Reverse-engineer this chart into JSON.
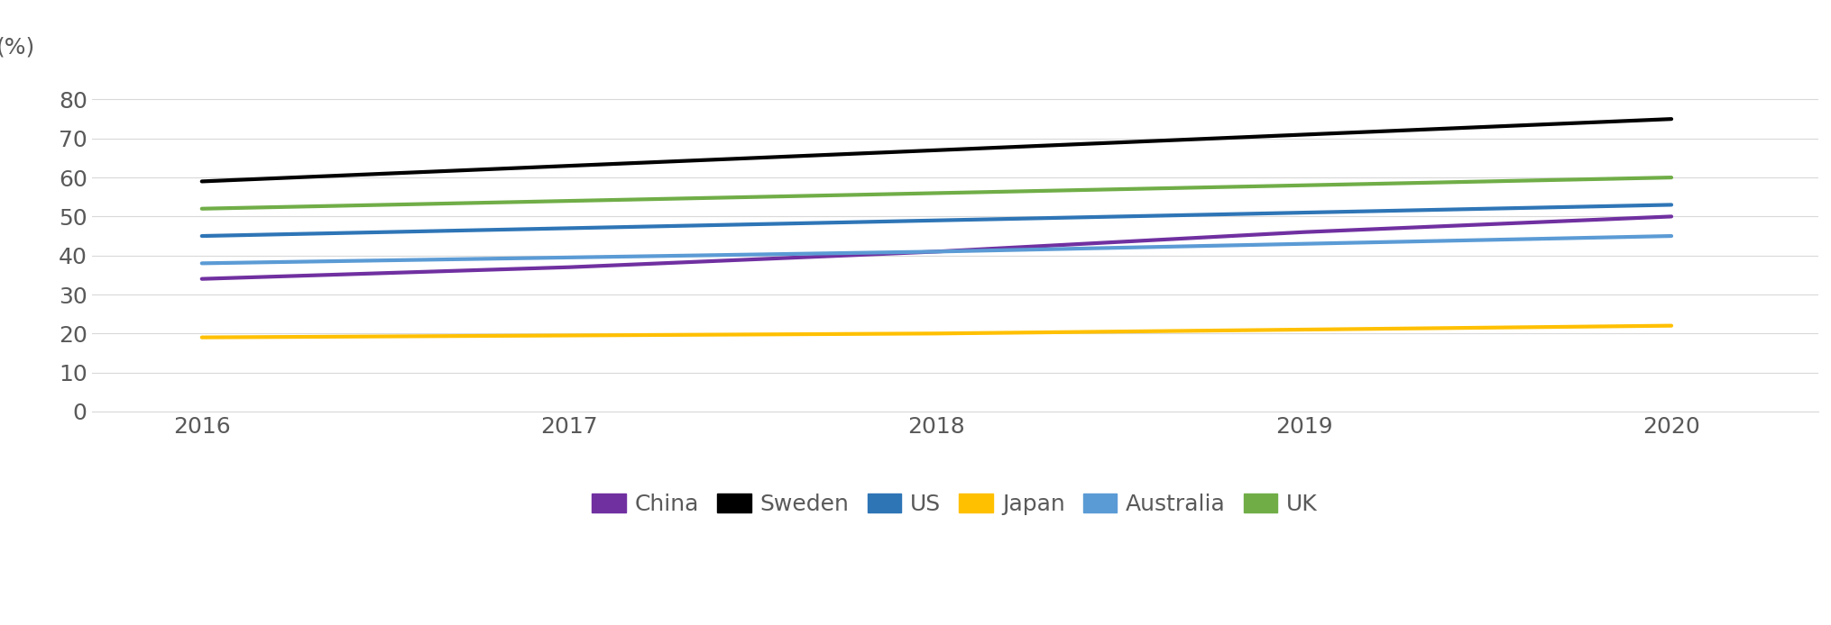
{
  "years": [
    2016,
    2017,
    2018,
    2019,
    2020
  ],
  "series": [
    {
      "label": "China",
      "color": "#7030A0",
      "values": [
        34,
        37,
        41,
        46,
        50
      ]
    },
    {
      "label": "Sweden",
      "color": "#000000",
      "values": [
        59,
        63,
        67,
        71,
        75
      ]
    },
    {
      "label": "US",
      "color": "#2E75B6",
      "values": [
        45,
        47,
        49,
        51,
        53
      ]
    },
    {
      "label": "Japan",
      "color": "#FFC000",
      "values": [
        19,
        19.5,
        20,
        21,
        22
      ]
    },
    {
      "label": "Australia",
      "color": "#5B9BD5",
      "values": [
        38,
        39.5,
        41,
        43,
        45
      ]
    },
    {
      "label": "UK",
      "color": "#70AD47",
      "values": [
        52,
        54,
        56,
        58,
        60
      ]
    }
  ],
  "ylabel": "(%)",
  "ylim": [
    0,
    88
  ],
  "yticks": [
    0,
    10,
    20,
    30,
    40,
    50,
    60,
    70,
    80
  ],
  "xlim": [
    2015.7,
    2020.4
  ],
  "xticks": [
    2016,
    2017,
    2018,
    2019,
    2020
  ],
  "line_width": 3.0,
  "legend_ncol": 6,
  "background_color": "#ffffff",
  "plot_background_color": "#ffffff",
  "tick_fontsize": 18,
  "ylabel_fontsize": 18,
  "legend_fontsize": 18
}
